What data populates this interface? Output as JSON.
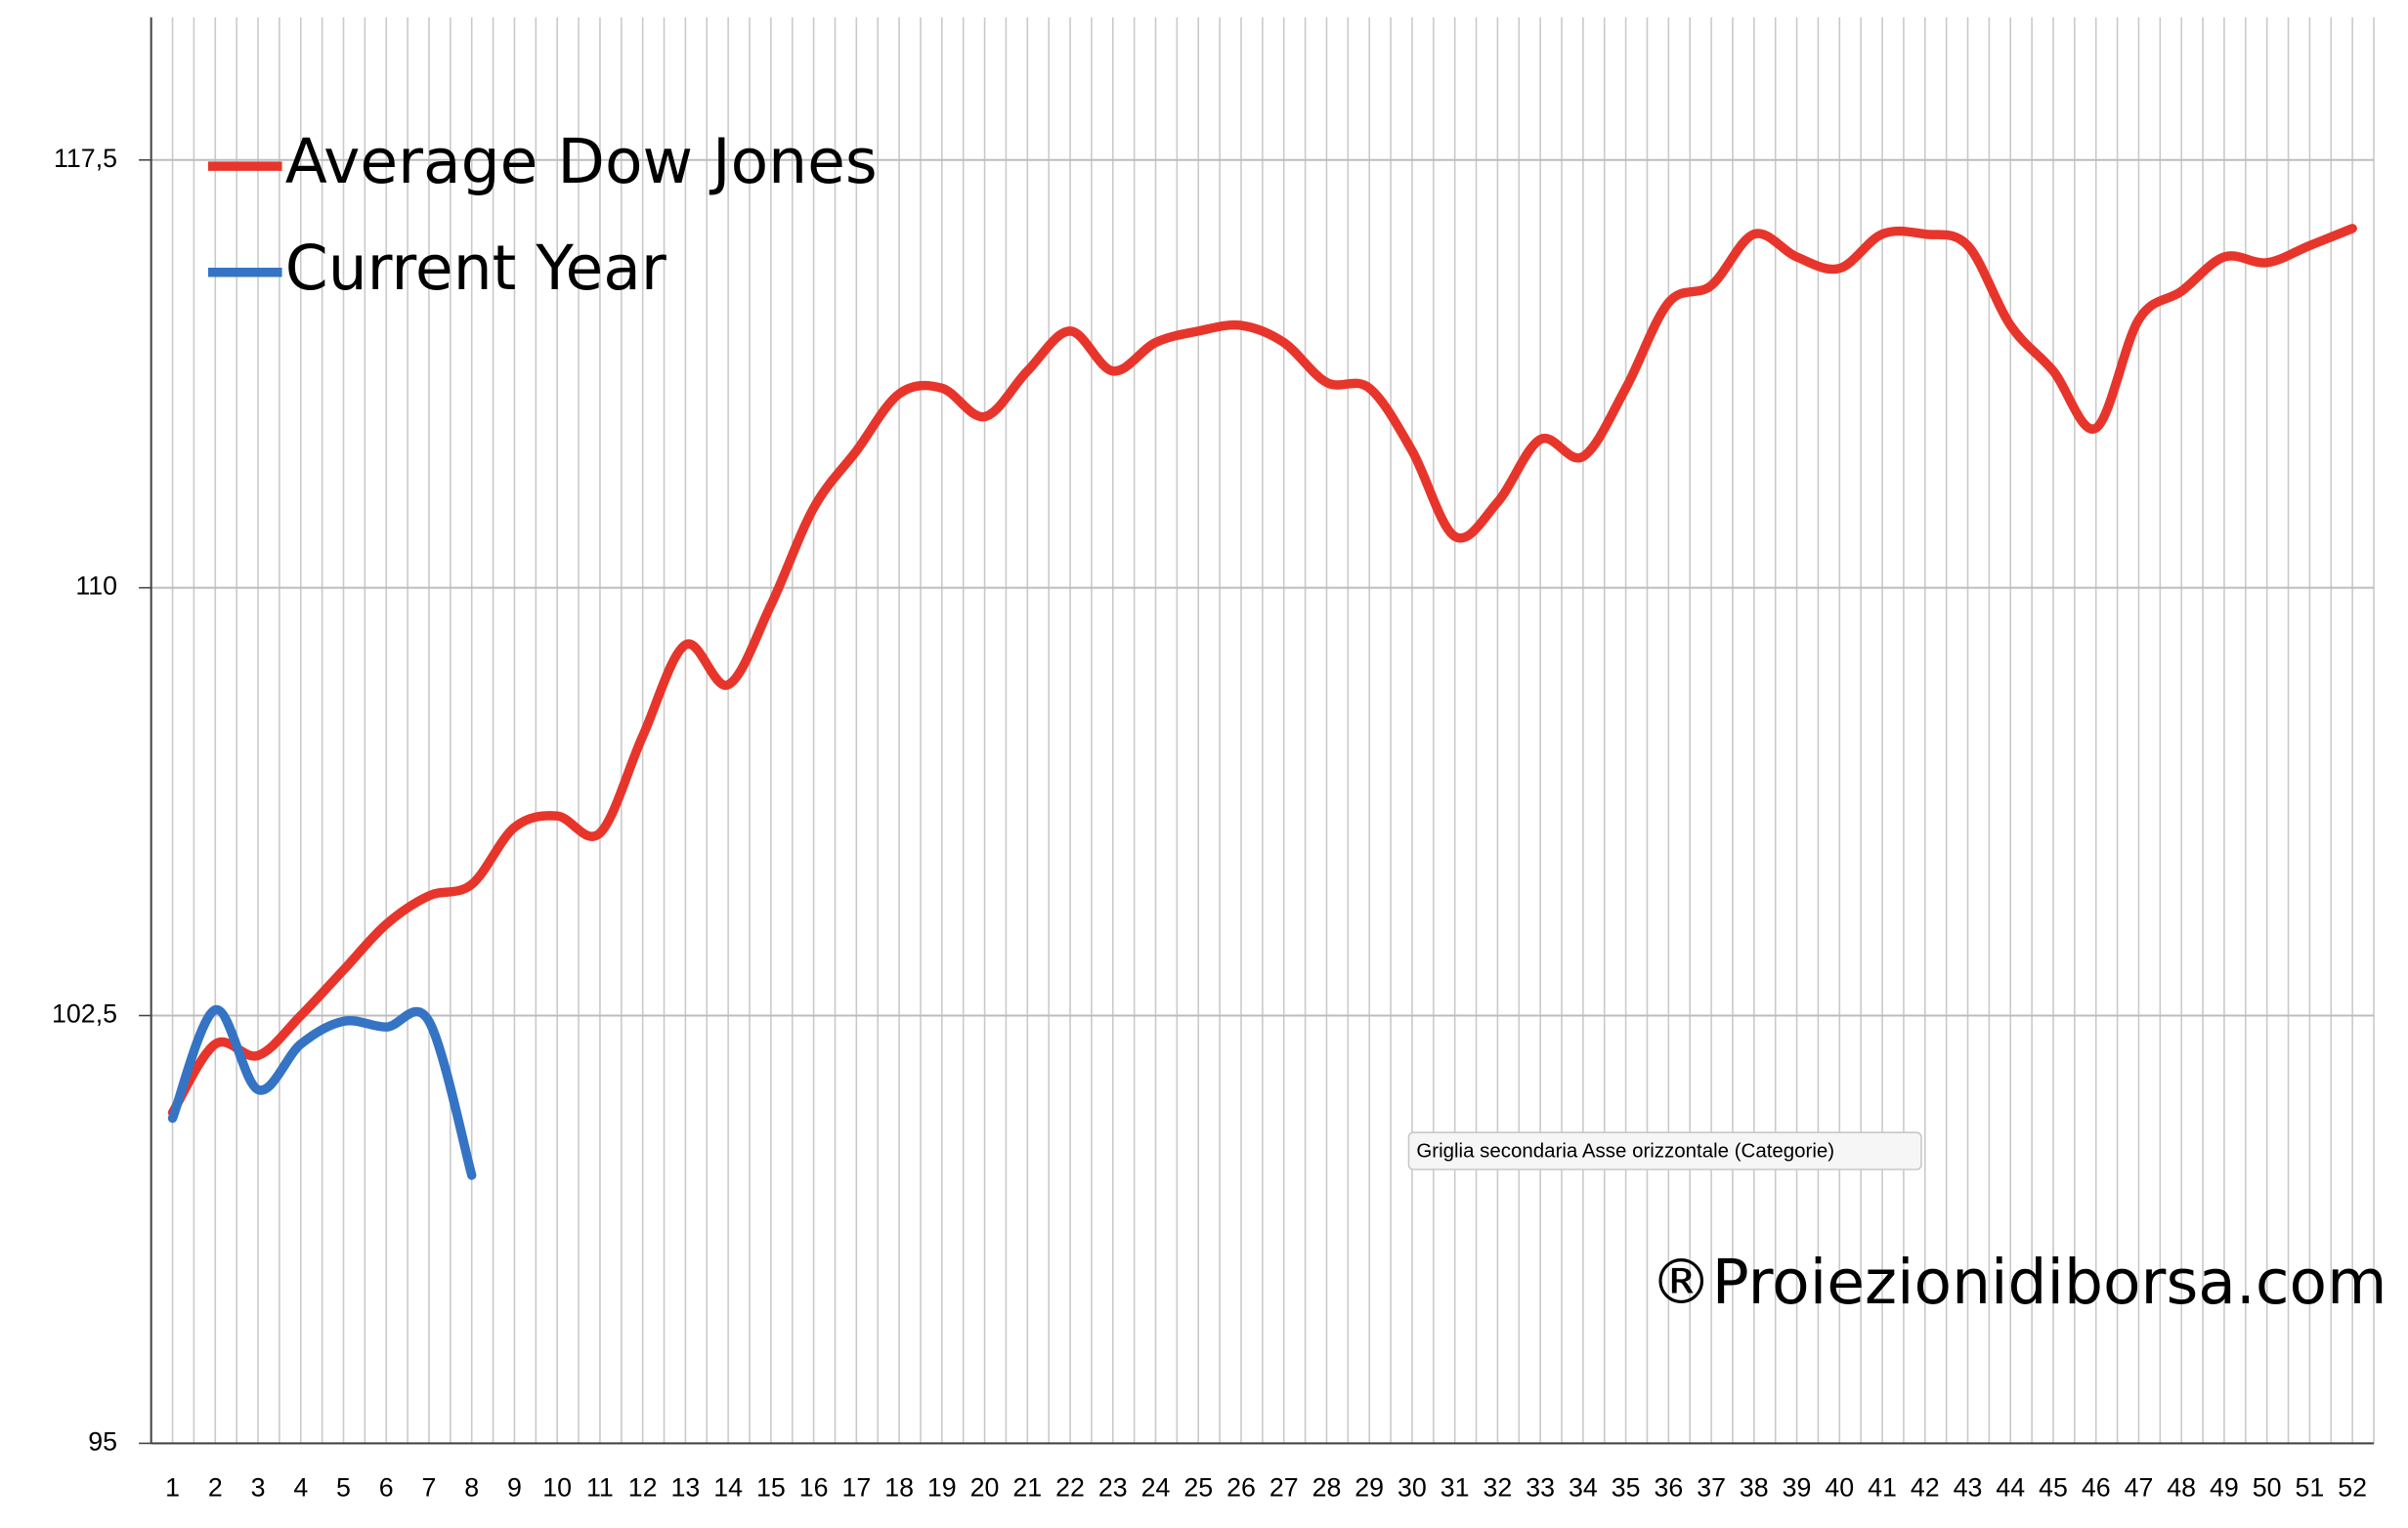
{
  "chart_data": {
    "type": "line",
    "categories": [
      "1",
      "2",
      "3",
      "4",
      "5",
      "6",
      "7",
      "8",
      "9",
      "10",
      "11",
      "12",
      "13",
      "14",
      "15",
      "16",
      "17",
      "18",
      "19",
      "20",
      "21",
      "22",
      "23",
      "24",
      "25",
      "26",
      "27",
      "28",
      "29",
      "30",
      "31",
      "32",
      "33",
      "34",
      "35",
      "36",
      "37",
      "38",
      "39",
      "40",
      "41",
      "42",
      "43",
      "44",
      "45",
      "46",
      "47",
      "48",
      "49",
      "50",
      "51",
      "52"
    ],
    "series": [
      {
        "name": "Average Dow Jones",
        "color": "#e8352b",
        "values": [
          100.8,
          102.0,
          101.8,
          102.5,
          103.3,
          104.1,
          104.6,
          104.8,
          105.8,
          106.0,
          105.7,
          107.4,
          109.0,
          108.3,
          109.7,
          111.4,
          112.4,
          113.4,
          113.5,
          113.0,
          113.8,
          114.5,
          113.8,
          114.3,
          114.5,
          114.6,
          114.3,
          113.6,
          113.5,
          112.4,
          110.9,
          111.5,
          112.6,
          112.3,
          113.5,
          115.0,
          115.3,
          116.2,
          115.8,
          115.6,
          116.2,
          116.2,
          116.0,
          114.6,
          113.8,
          112.8,
          114.7,
          115.2,
          115.8,
          115.7,
          116.0,
          116.3
        ]
      },
      {
        "name": "Current Year",
        "color": "#3574c4",
        "values": [
          100.7,
          102.6,
          101.2,
          102.0,
          102.4,
          102.3,
          102.4,
          99.7,
          null,
          null,
          null,
          null,
          null,
          null,
          null,
          null,
          null,
          null,
          null,
          null,
          null,
          null,
          null,
          null,
          null,
          null,
          null,
          null,
          null,
          null,
          null,
          null,
          null,
          null,
          null,
          null,
          null,
          null,
          null,
          null,
          null,
          null,
          null,
          null,
          null,
          null,
          null,
          null,
          null,
          null,
          null,
          null
        ]
      }
    ],
    "ylim": [
      95,
      120
    ],
    "yticks": [
      95,
      {
        "value": 102.5,
        "label": "102,5"
      },
      110,
      {
        "value": 117.5,
        "label": "117,5"
      }
    ],
    "grid": true,
    "smooth": true,
    "legend": "upper left",
    "annotations": [
      "Griglia secondaria Asse orizzontale (Categorie)",
      "®Proiezionidiborsa.com"
    ]
  }
}
